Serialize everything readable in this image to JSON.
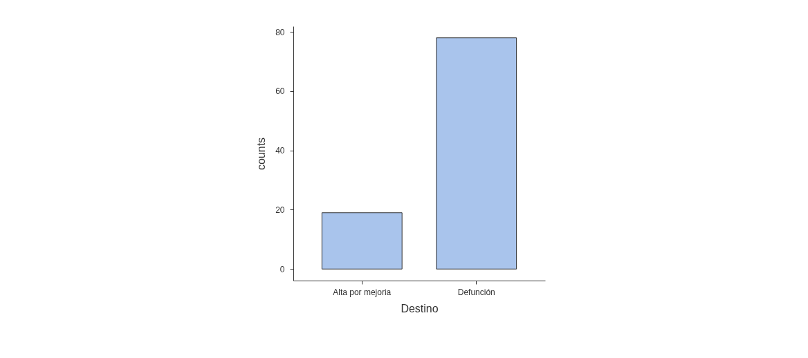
{
  "chart_data": {
    "type": "bar",
    "xlabel": "Destino",
    "ylabel": "counts",
    "categories": [
      "Alta por mejoria",
      "Defunción"
    ],
    "values": [
      19,
      78
    ],
    "color": "#a9c4ec",
    "ylim": [
      -3.9,
      81.9
    ],
    "yticks": [
      0,
      20,
      40,
      60,
      80
    ],
    "grid": false
  }
}
